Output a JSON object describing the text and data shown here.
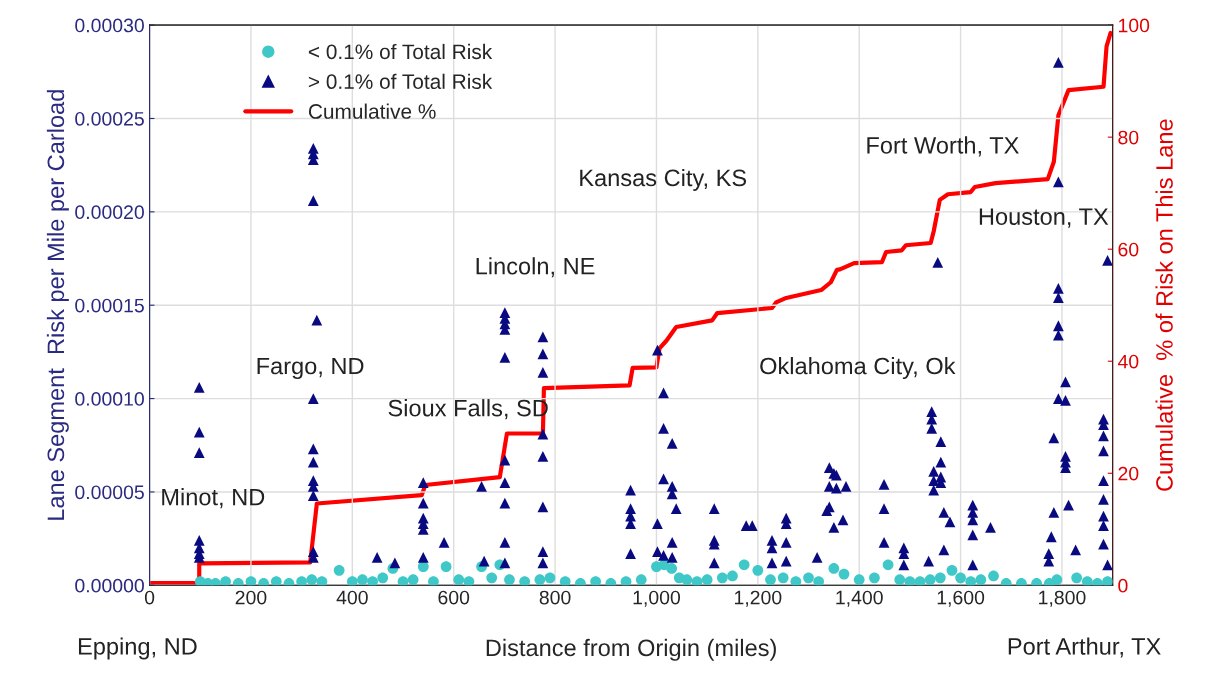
{
  "chart_data": {
    "type": "scatter",
    "xlabel": "Distance from Origin (miles)",
    "ylabel": "Lane Segment  Risk per Mile per Carload",
    "y2label": "Cumulative  % of Risk on This Lane",
    "xlim": [
      0,
      1900
    ],
    "xticks": [
      0,
      200,
      400,
      600,
      800,
      {
        "value": 1000,
        "label": "1,000"
      },
      {
        "value": 1200,
        "label": "1,200"
      },
      {
        "value": 1400,
        "label": "1,400"
      },
      {
        "value": 1600,
        "label": "1,600"
      },
      {
        "value": 1800,
        "label": "1,800"
      }
    ],
    "ylim": [
      0,
      0.0003
    ],
    "yticks": [
      {
        "value": 0,
        "label": "0.00000"
      },
      {
        "value": 5e-05,
        "label": "0.00005"
      },
      {
        "value": 0.0001,
        "label": "0.00010"
      },
      {
        "value": 0.00015,
        "label": "0.00015"
      },
      {
        "value": 0.0002,
        "label": "0.00020"
      },
      {
        "value": 0.00025,
        "label": "0.00025"
      },
      {
        "value": 0.0003,
        "label": "0.00030"
      }
    ],
    "y2lim": [
      0,
      100
    ],
    "y2ticks": [
      0,
      20,
      40,
      60,
      80,
      100
    ],
    "grid": true,
    "legend": "top left",
    "series": [
      {
        "name": "< 0.1% of Total Risk",
        "marker": "circle",
        "color": "#40c8c8",
        "x": [
          100,
          115,
          130,
          150,
          175,
          200,
          225,
          250,
          275,
          300,
          320,
          340,
          374,
          400,
          420,
          440,
          460,
          480,
          500,
          520,
          540,
          560,
          585,
          610,
          630,
          655,
          675,
          691,
          710,
          740,
          770,
          790,
          820,
          850,
          880,
          910,
          940,
          970,
          1000,
          1015,
          1030,
          1045,
          1060,
          1080,
          1100,
          1130,
          1150,
          1173,
          1200,
          1225,
          1250,
          1275,
          1300,
          1320,
          1350,
          1370,
          1400,
          1430,
          1457,
          1480,
          1500,
          1520,
          1540,
          1560,
          1583,
          1600,
          1620,
          1640,
          1665,
          1690,
          1720,
          1750,
          1775,
          1790,
          1829,
          1850,
          1870,
          1890
        ],
        "values": [
          2e-06,
          1e-06,
          1e-06,
          2e-06,
          1e-06,
          2e-06,
          1e-06,
          2e-06,
          1e-06,
          2e-06,
          3e-06,
          2e-06,
          8e-06,
          2e-06,
          3e-06,
          2e-06,
          4e-06,
          9e-06,
          2e-06,
          3e-06,
          1e-05,
          2e-06,
          1e-05,
          3e-06,
          2e-06,
          1e-05,
          4e-06,
          1.1e-05,
          3e-06,
          2e-06,
          3e-06,
          4e-06,
          2e-06,
          1e-06,
          2e-06,
          1e-06,
          2e-06,
          3e-06,
          1e-05,
          1.1e-05,
          9e-06,
          4e-06,
          3e-06,
          2e-06,
          3e-06,
          4e-06,
          5e-06,
          1.1e-05,
          8e-06,
          3e-06,
          4e-06,
          2e-06,
          4e-06,
          2e-06,
          9e-06,
          6e-06,
          3e-06,
          4e-06,
          1.1e-05,
          3e-06,
          2e-06,
          2e-06,
          3e-06,
          4e-06,
          8e-06,
          4e-06,
          2e-06,
          3e-06,
          5e-06,
          1e-06,
          1e-06,
          1e-06,
          1e-06,
          3e-06,
          4e-06,
          2e-06,
          1e-06,
          2e-06
        ]
      },
      {
        "name": "> 0.1% of Total Risk",
        "marker": "triangle",
        "color": "#0a0a80",
        "x": [
          98,
          98,
          98,
          98,
          98,
          98,
          98,
          323,
          323,
          323,
          323,
          330,
          323,
          323,
          323,
          323,
          323,
          323,
          323,
          323,
          449,
          484,
          540,
          540,
          540,
          540,
          540,
          540,
          581,
          655,
          660,
          701,
          701,
          701,
          701,
          701,
          701,
          701,
          701,
          701,
          701,
          776,
          776,
          776,
          776,
          776,
          776,
          776,
          776,
          949,
          949,
          949,
          949,
          949,
          1002,
          1002,
          1002,
          1014,
          1014,
          1014,
          1014,
          1031,
          1031,
          1031,
          1031,
          1031,
          1039,
          1114,
          1114,
          1114,
          1114,
          1177,
          1189,
          1228,
          1228,
          1228,
          1256,
          1256,
          1256,
          1256,
          1317,
          1341,
          1341,
          1341,
          1350,
          1350,
          1355,
          1355,
          1374,
          1336,
          1368,
          1449,
          1449,
          1449,
          1488,
          1488,
          1488,
          1537,
          1543,
          1543,
          1543,
          1561,
          1561,
          1561,
          1561,
          1547,
          1547,
          1547,
          1555,
          1567,
          1567,
          1579,
          1624,
          1624,
          1624,
          1624,
          1624,
          1659,
          1774,
          1774,
          1779,
          1784,
          1784,
          1793,
          1793,
          1793,
          1793,
          1793,
          1793,
          1793,
          1807,
          1807,
          1807,
          1807,
          1807,
          1813,
          1827,
          1882,
          1882,
          1882,
          1882,
          1882,
          1882,
          1882,
          1882,
          1882,
          1890,
          1890
        ],
        "values": [
          0.000106,
          8.2e-05,
          7.1e-05,
          2.4e-05,
          2e-05,
          1.7e-05,
          1.5e-05,
          0.000234,
          0.000231,
          0.000228,
          0.000206,
          0.000142,
          0.0001,
          7.3e-05,
          6.6e-05,
          5.6e-05,
          5.3e-05,
          4.8e-05,
          1.8e-05,
          1.5e-05,
          1.5e-05,
          1.2e-05,
          5.5e-05,
          4.4e-05,
          3.6e-05,
          3.3e-05,
          3e-05,
          1.5e-05,
          2.3e-05,
          5.3e-05,
          1.3e-05,
          0.000146,
          0.000143,
          0.00014,
          0.000137,
          0.000122,
          6.7e-05,
          5.5e-05,
          4.4e-05,
          2.3e-05,
          1.2e-05,
          0.000133,
          0.000124,
          0.000114,
          8.1e-05,
          6.9e-05,
          4.2e-05,
          1.8e-05,
          1.2e-05,
          5.1e-05,
          4.1e-05,
          3.7e-05,
          3.3e-05,
          1.7e-05,
          0.000126,
          3.3e-05,
          1.8e-05,
          0.000103,
          8.4e-05,
          5.7e-05,
          1.6e-05,
          7.6e-05,
          5.3e-05,
          4.9e-05,
          2.3e-05,
          1.5e-05,
          4.1e-05,
          4.1e-05,
          2.4e-05,
          2.2e-05,
          1.2e-05,
          3.2e-05,
          3.2e-05,
          2.4e-05,
          2e-05,
          1.2e-05,
          3.6e-05,
          3.3e-05,
          2.3e-05,
          1.3e-05,
          1.5e-05,
          6.3e-05,
          5.3e-05,
          4.2e-05,
          6e-05,
          3.1e-05,
          5.9e-05,
          5.2e-05,
          5.3e-05,
          4e-05,
          3.5e-05,
          5.4e-05,
          4.1e-05,
          2.3e-05,
          2e-05,
          1.7e-05,
          1.1e-05,
          1.3e-05,
          9.3e-05,
          8.9e-05,
          8.4e-05,
          7.7e-05,
          6.6e-05,
          5.8e-05,
          5.5e-05,
          6.1e-05,
          5.6e-05,
          5.1e-05,
          0.000173,
          3.9e-05,
          1.9e-05,
          3.4e-05,
          4.3e-05,
          3.9e-05,
          3.5e-05,
          2.7e-05,
          1.1e-05,
          3.1e-05,
          1.7e-05,
          1.3e-05,
          2.6e-05,
          3.9e-05,
          7.9e-05,
          0.00028,
          0.000216,
          0.000159,
          0.000154,
          0.000139,
          0.000134,
          0.0001,
          0.000109,
          9.9e-05,
          6.9e-05,
          6.6e-05,
          6.3e-05,
          4.3e-05,
          1.9e-05,
          8.9e-05,
          8.6e-05,
          8e-05,
          7.2e-05,
          5.6e-05,
          4.6e-05,
          3.7e-05,
          3.2e-05,
          2.2e-05,
          0.000174,
          1.1e-05
        ]
      },
      {
        "name": "Cumulative %",
        "type": "line",
        "axis": "y2",
        "marker": "none",
        "line_style": "solid",
        "color": "#ff0000",
        "x": [
          0,
          98,
          98,
          317,
          330,
          537,
          544,
          691,
          705,
          776,
          778,
          947,
          953,
          1000,
          1006,
          1020,
          1039,
          1110,
          1120,
          1228,
          1236,
          1256,
          1325,
          1344,
          1356,
          1362,
          1390,
          1445,
          1453,
          1484,
          1492,
          1541,
          1547,
          1559,
          1575,
          1620,
          1628,
          1669,
          1772,
          1784,
          1793,
          1813,
          1882,
          1888,
          1896
        ],
        "values": [
          0.4,
          0.4,
          3.9,
          4.1,
          14.6,
          16.1,
          17.9,
          19.3,
          27.1,
          27.1,
          35.2,
          35.7,
          38.8,
          38.9,
          42.3,
          43.7,
          46.1,
          47.3,
          48.6,
          49.5,
          50.5,
          51.3,
          52.7,
          54.1,
          56.3,
          56.4,
          57.5,
          57.7,
          59.5,
          59.8,
          60.7,
          61.1,
          63.2,
          68.8,
          69.8,
          70.2,
          71.1,
          71.8,
          72.5,
          75.6,
          83.9,
          88.4,
          89,
          96.2,
          98.6
        ]
      }
    ],
    "annotations": [
      "Minot, ND",
      "Fargo, ND",
      "Sioux Falls, SD",
      "Lincoln, NE",
      "Kansas City, KS",
      "Oklahoma City, Ok",
      "Fort Worth, TX",
      "Houston, TX",
      "Epping, ND",
      "Port Arthur, TX"
    ]
  }
}
